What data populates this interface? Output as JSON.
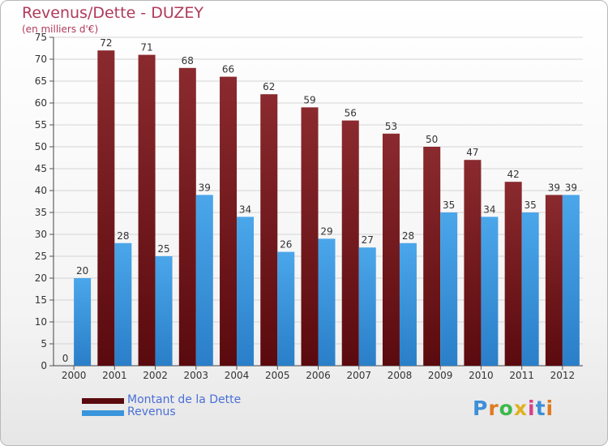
{
  "chart_data": {
    "type": "bar",
    "title": "Revenus/Dette - DUZEY",
    "subtitle": "(en milliers d'€)",
    "categories": [
      "2000",
      "2001",
      "2002",
      "2003",
      "2004",
      "2005",
      "2006",
      "2007",
      "2008",
      "2009",
      "2010",
      "2011",
      "2012"
    ],
    "series": [
      {
        "name": "Montant de la Dette",
        "color": "#7a1b1f",
        "values": [
          0,
          72,
          71,
          68,
          66,
          62,
          59,
          56,
          53,
          50,
          47,
          42,
          39
        ]
      },
      {
        "name": "Revenus",
        "color": "#3a95db",
        "values": [
          20,
          28,
          25,
          39,
          34,
          26,
          29,
          27,
          28,
          35,
          34,
          35,
          39
        ]
      }
    ],
    "ylim": [
      0,
      75
    ],
    "yticks": [
      0,
      5,
      10,
      15,
      20,
      25,
      30,
      35,
      40,
      45,
      50,
      55,
      60,
      65,
      70,
      75
    ],
    "grid": true,
    "legend": "bottom-left"
  },
  "logo": {
    "letters": [
      "P",
      "r",
      "o",
      "x",
      "i",
      "t",
      "i"
    ],
    "colors": [
      "#3d8fd8",
      "#e07a20",
      "#3db84a",
      "#e0b020",
      "#d8408a",
      "#3d8fd8",
      "#e07a20"
    ]
  }
}
